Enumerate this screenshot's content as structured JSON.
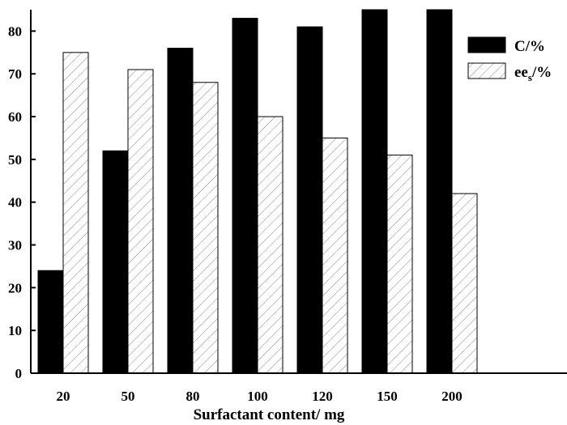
{
  "chart_data": {
    "type": "bar",
    "categories": [
      "20",
      "50",
      "80",
      "100",
      "120",
      "150",
      "200"
    ],
    "series": [
      {
        "name": "C/%",
        "values": [
          24,
          52,
          76,
          83,
          81,
          85,
          85
        ],
        "style": "solid",
        "color": "#000000"
      },
      {
        "name_main": "ee",
        "name_sub": "s",
        "name_suffix": "/%",
        "values": [
          75,
          71,
          68,
          60,
          55,
          51,
          42
        ],
        "style": "hatched",
        "color": "#ffffff"
      }
    ],
    "xlabel": "Surfactant content/ mg",
    "ylabel": "",
    "ylim": [
      0,
      85
    ],
    "yticks": [
      "0",
      "10",
      "20",
      "30",
      "40",
      "50",
      "60",
      "70",
      "80"
    ],
    "legend_position": "top-right",
    "grid": false
  }
}
